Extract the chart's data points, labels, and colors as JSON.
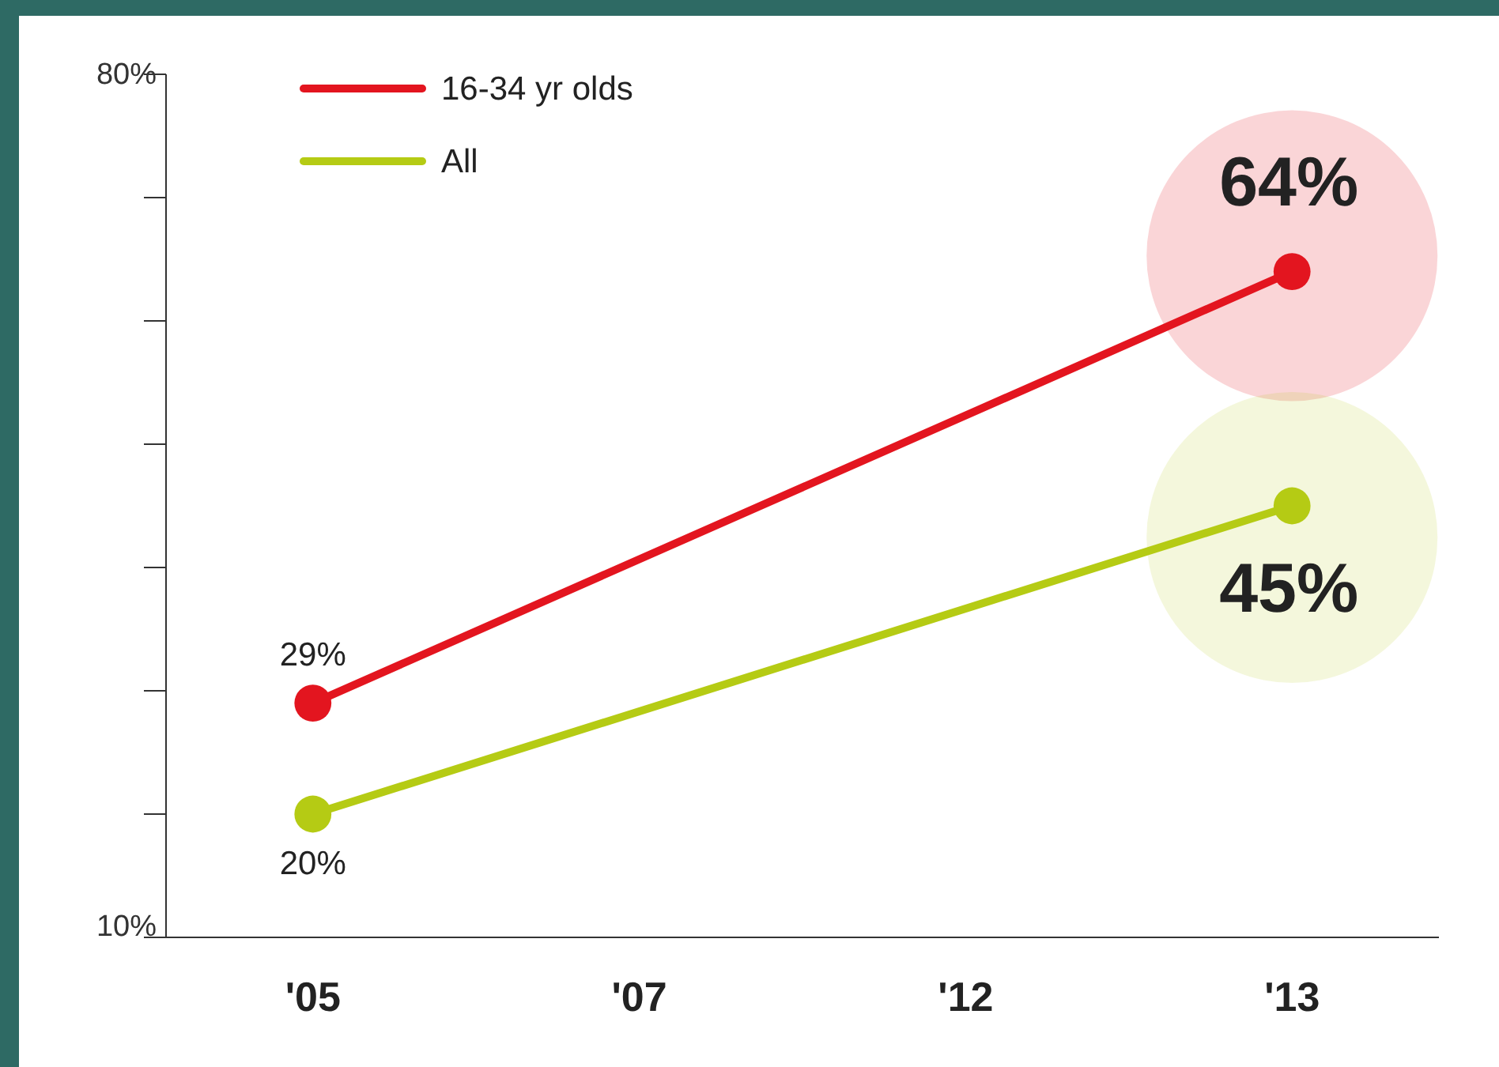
{
  "chart_data": {
    "type": "line",
    "categories": [
      "'05",
      "'07",
      "'12",
      "'13"
    ],
    "series": [
      {
        "name": "16-34 yr olds",
        "color": "#e3151f",
        "values": [
          29,
          null,
          null,
          64
        ],
        "value_labels": [
          "29%",
          null,
          null,
          "64%"
        ]
      },
      {
        "name": "All",
        "color": "#b5cb14",
        "values": [
          20,
          null,
          null,
          45
        ],
        "value_labels": [
          "20%",
          null,
          null,
          "45%"
        ]
      }
    ],
    "ylim": [
      10,
      80
    ],
    "yticks": [
      {
        "value": 10,
        "label": "10%"
      },
      {
        "value": 20,
        "label": null
      },
      {
        "value": 30,
        "label": null
      },
      {
        "value": 40,
        "label": null
      },
      {
        "value": 50,
        "label": null
      },
      {
        "value": 60,
        "label": null
      },
      {
        "value": 70,
        "label": null
      },
      {
        "value": 80,
        "label": "80%"
      }
    ],
    "legend": "top left",
    "marker": "circle",
    "line_style": "solid",
    "grid": false
  }
}
